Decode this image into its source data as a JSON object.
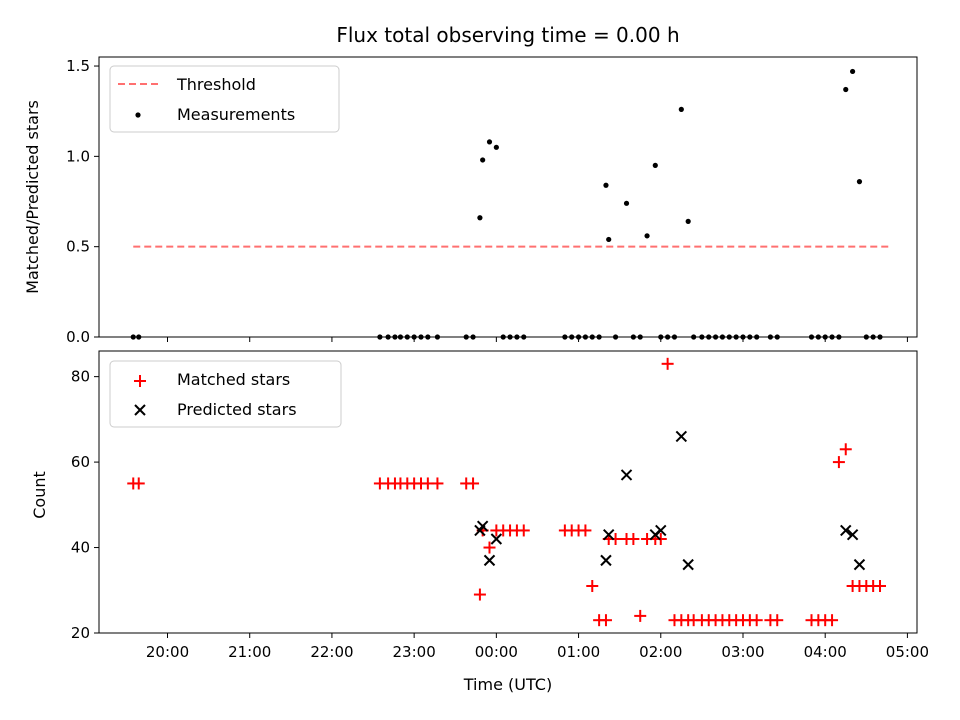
{
  "chart_data": [
    {
      "type": "scatter",
      "title": "Flux total observing time = 0.00 h",
      "xlabel": "",
      "ylabel": "Matched/Predicted stars",
      "ylim": [
        0,
        1.55
      ],
      "xlim": [
        "19:10",
        "05:07"
      ],
      "yticks": [
        "0.0",
        "0.5",
        "1.0",
        "1.5"
      ],
      "legend_position": "upper-left",
      "series": [
        {
          "name": "Threshold",
          "kind": "dashed-line",
          "color": "#ff7070",
          "x": [
            "19:35",
            "04:47"
          ],
          "y": [
            0.5,
            0.5
          ]
        },
        {
          "name": "Measurements",
          "kind": "dot",
          "color": "#000000",
          "x": [
            "19:35",
            "19:39",
            "22:35",
            "22:41",
            "22:46",
            "22:50",
            "22:55",
            "23:00",
            "23:05",
            "23:10",
            "23:17",
            "23:38",
            "23:43",
            "23:48",
            "23:50",
            "23:55",
            "00:00",
            "00:05",
            "00:10",
            "00:15",
            "00:20",
            "00:50",
            "00:55",
            "01:00",
            "01:05",
            "01:10",
            "01:15",
            "01:20",
            "01:22",
            "01:27",
            "01:35",
            "01:40",
            "01:45",
            "01:50",
            "01:56",
            "02:00",
            "02:05",
            "02:10",
            "02:15",
            "02:20",
            "02:24",
            "02:30",
            "02:35",
            "02:40",
            "02:45",
            "02:50",
            "02:55",
            "03:00",
            "03:05",
            "03:10",
            "03:20",
            "03:25",
            "03:50",
            "03:55",
            "04:00",
            "04:05",
            "04:10",
            "04:15",
            "04:20",
            "04:25",
            "04:30",
            "04:35",
            "04:40"
          ],
          "y": [
            0,
            0,
            0,
            0,
            0,
            0,
            0,
            0,
            0,
            0,
            0,
            0,
            0,
            0.66,
            0.98,
            1.08,
            1.05,
            0,
            0,
            0,
            0,
            0,
            0,
            0,
            0,
            0,
            0,
            0.84,
            0.54,
            0,
            0.74,
            0,
            0,
            0.56,
            0.95,
            0,
            0,
            0,
            1.26,
            0.64,
            0,
            0,
            0,
            0,
            0,
            0,
            0,
            0,
            0,
            0,
            0,
            0,
            0,
            0,
            0,
            0,
            0,
            1.37,
            1.47,
            0.86,
            0,
            0,
            0
          ]
        }
      ]
    },
    {
      "type": "scatter",
      "title": "",
      "xlabel": "Time (UTC)",
      "ylabel": "Count",
      "ylim": [
        20,
        86
      ],
      "xlim": [
        "19:10",
        "05:07"
      ],
      "yticks": [
        "20",
        "40",
        "60",
        "80"
      ],
      "xticks": [
        "20:00",
        "21:00",
        "22:00",
        "23:00",
        "00:00",
        "01:00",
        "02:00",
        "03:00",
        "04:00",
        "05:00"
      ],
      "legend_position": "upper-left",
      "series": [
        {
          "name": "Matched stars",
          "kind": "plus",
          "color": "#ff0000",
          "x": [
            "19:35",
            "19:39",
            "22:35",
            "22:41",
            "22:46",
            "22:50",
            "22:55",
            "23:00",
            "23:05",
            "23:10",
            "23:17",
            "23:38",
            "23:43",
            "23:48",
            "23:50",
            "23:55",
            "00:00",
            "00:05",
            "00:10",
            "00:15",
            "00:20",
            "00:50",
            "00:55",
            "01:00",
            "01:05",
            "01:10",
            "01:15",
            "01:20",
            "01:22",
            "01:27",
            "01:35",
            "01:40",
            "01:45",
            "01:50",
            "01:56",
            "02:00",
            "02:05",
            "02:10",
            "02:15",
            "02:20",
            "02:24",
            "02:30",
            "02:35",
            "02:40",
            "02:45",
            "02:50",
            "02:55",
            "03:00",
            "03:05",
            "03:10",
            "03:20",
            "03:25",
            "03:50",
            "03:55",
            "04:00",
            "04:05",
            "04:10",
            "04:15",
            "04:20",
            "04:25",
            "04:30",
            "04:35",
            "04:40"
          ],
          "y": [
            55,
            55,
            55,
            55,
            55,
            55,
            55,
            55,
            55,
            55,
            55,
            55,
            55,
            29,
            44,
            40,
            44,
            44,
            44,
            44,
            44,
            44,
            44,
            44,
            44,
            31,
            23,
            23,
            42,
            42,
            42,
            42,
            24,
            42,
            42,
            42,
            83,
            23,
            23,
            23,
            23,
            23,
            23,
            23,
            23,
            23,
            23,
            23,
            23,
            23,
            23,
            23,
            23,
            23,
            23,
            23,
            60,
            63,
            31,
            31,
            31,
            31,
            31
          ]
        },
        {
          "name": "Predicted stars",
          "kind": "x",
          "color": "#000000",
          "x": [
            "23:48",
            "23:50",
            "23:55",
            "00:00",
            "01:20",
            "01:22",
            "01:35",
            "01:56",
            "02:00",
            "02:15",
            "02:20",
            "04:15",
            "04:20",
            "04:25"
          ],
          "y": [
            44,
            45,
            37,
            42,
            37,
            43,
            57,
            43,
            44,
            66,
            36,
            44,
            43,
            36
          ]
        }
      ]
    }
  ]
}
